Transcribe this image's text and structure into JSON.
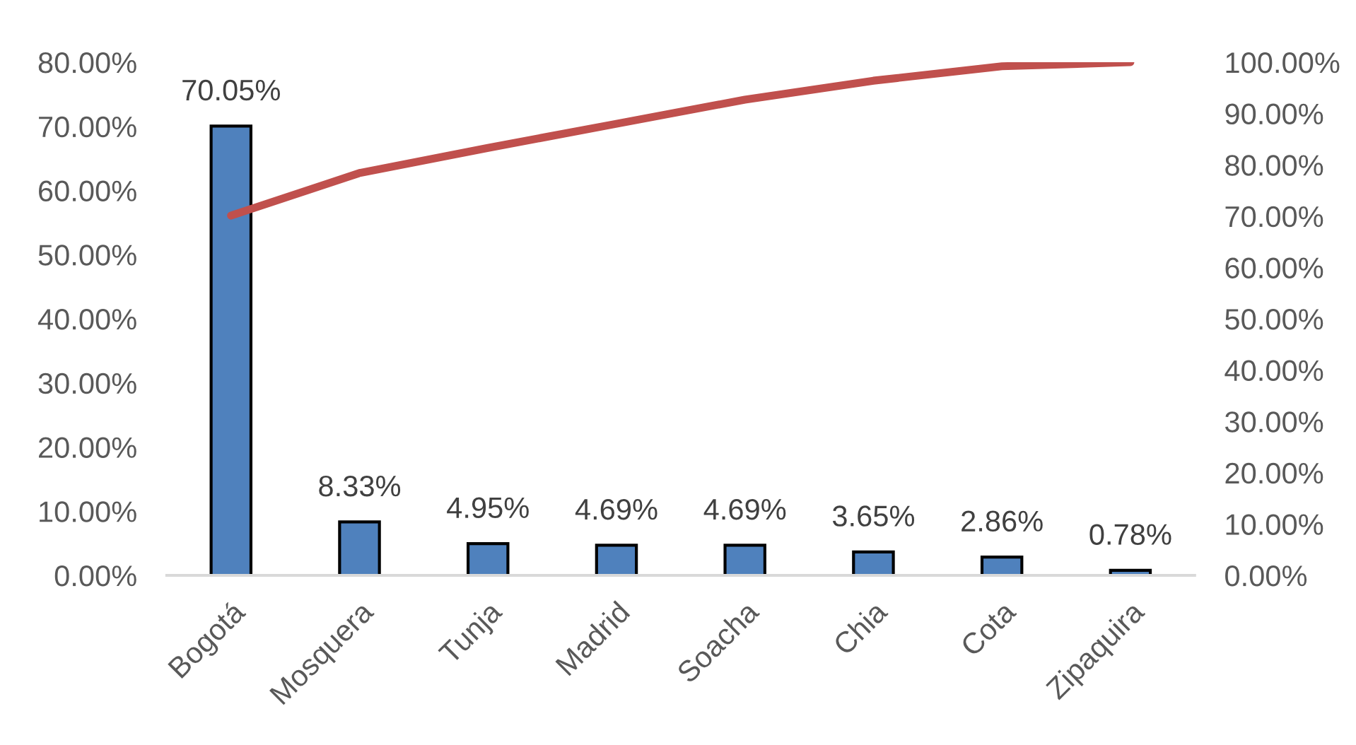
{
  "chart_data": {
    "type": "bar",
    "categories": [
      "Bogotá",
      "Mosquera",
      "Tunja",
      "Madrid",
      "Soacha",
      "Chia",
      "Cota",
      "Zipaquira"
    ],
    "series": [
      {
        "color": "#4f81bd",
        "values": [
          70.05,
          8.33,
          4.95,
          4.69,
          4.69,
          3.65,
          2.86,
          0.78
        ],
        "value_labels": [
          "70.05%",
          "8.33%",
          "4.95%",
          "4.69%",
          "4.69%",
          "3.65%",
          "2.86%",
          "0.78%"
        ]
      },
      {
        "type": "line",
        "axis": "y2",
        "color": "#c0504d",
        "values": [
          70.1,
          78.4,
          83.3,
          88.0,
          92.7,
          96.4,
          99.2,
          100.0
        ]
      }
    ],
    "ylim": [
      0,
      80
    ],
    "yticks": [
      {
        "value": 0,
        "label": "0.00%"
      },
      {
        "value": 10,
        "label": "10.00%"
      },
      {
        "value": 20,
        "label": "20.00%"
      },
      {
        "value": 30,
        "label": "30.00%"
      },
      {
        "value": 40,
        "label": "40.00%"
      },
      {
        "value": 50,
        "label": "50.00%"
      },
      {
        "value": 60,
        "label": "60.00%"
      },
      {
        "value": 70,
        "label": "70.00%"
      },
      {
        "value": 80,
        "label": "80.00%"
      }
    ],
    "y2lim": [
      0,
      100
    ],
    "y2ticks": [
      {
        "value": 0,
        "label": "0.00%"
      },
      {
        "value": 10,
        "label": "10.00%"
      },
      {
        "value": 20,
        "label": "20.00%"
      },
      {
        "value": 30,
        "label": "30.00%"
      },
      {
        "value": 40,
        "label": "40.00%"
      },
      {
        "value": 50,
        "label": "50.00%"
      },
      {
        "value": 60,
        "label": "60.00%"
      },
      {
        "value": 70,
        "label": "70.00%"
      },
      {
        "value": 80,
        "label": "80.00%"
      },
      {
        "value": 90,
        "label": "90.00%"
      },
      {
        "value": 100,
        "label": "100.00%"
      }
    ],
    "grid": false,
    "marker": "none",
    "line_style": "solid"
  }
}
